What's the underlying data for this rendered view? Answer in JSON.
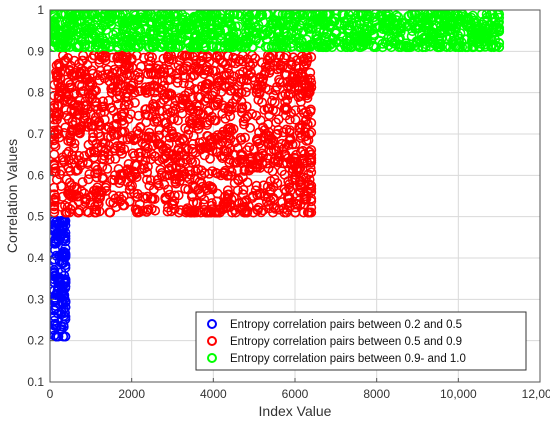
{
  "chart_data": {
    "type": "scatter",
    "title": "",
    "xlabel": "Index Value",
    "ylabel": "Correlation Values",
    "xlim": [
      0,
      12000
    ],
    "ylim": [
      0.1,
      1.0
    ],
    "x_ticks": [
      0,
      2000,
      4000,
      6000,
      8000,
      10000,
      12000
    ],
    "x_tick_labels": [
      "0",
      "2000",
      "4000",
      "6000",
      "8000",
      "10,000",
      "12,000"
    ],
    "y_ticks": [
      0.1,
      0.2,
      0.3,
      0.4,
      0.5,
      0.6,
      0.7,
      0.8,
      0.9,
      1.0
    ],
    "y_tick_labels": [
      "0.1",
      "0.2",
      "0.3",
      "0.4",
      "0.5",
      "0.6",
      "0.7",
      "0.8",
      "0.9",
      "1"
    ],
    "grid": true,
    "legend_position": "bottom-right",
    "marker": "circle-open",
    "series": [
      {
        "name": "Entropy correlation pairs between 0.2 and 0.5",
        "color": "#0000ff",
        "x_range": [
          0,
          480
        ],
        "y_range": [
          0.2,
          0.5
        ]
      },
      {
        "name": "Entropy correlation pairs between 0.5 and 0.9",
        "color": "#ff0000",
        "x_range": [
          0,
          6500
        ],
        "y_range": [
          0.5,
          0.9
        ]
      },
      {
        "name": "Entropy correlation pairs between 0.9- and 1.0",
        "color": "#00ff00",
        "x_range": [
          0,
          11100
        ],
        "y_range": [
          0.9,
          1.0
        ]
      }
    ]
  }
}
